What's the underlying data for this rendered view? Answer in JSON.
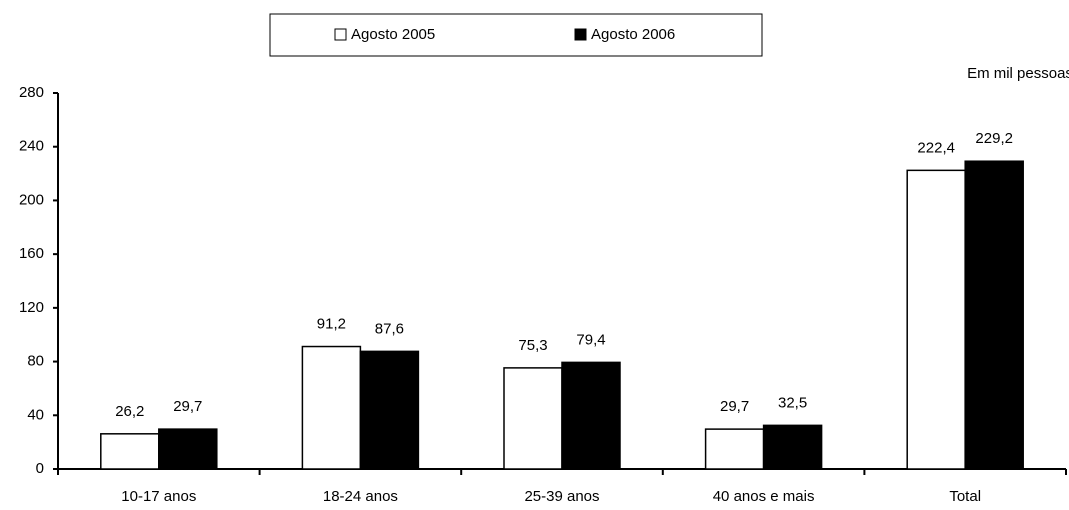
{
  "chart_data": {
    "type": "bar",
    "annotation": "Em mil pessoas",
    "categories": [
      "10-17 anos",
      "18-24 anos",
      "25-39 anos",
      "40 anos e mais",
      "Total"
    ],
    "series": [
      {
        "name": "Agosto 2005",
        "color": "#ffffff",
        "values": [
          26.2,
          91.2,
          75.3,
          29.7,
          222.4
        ],
        "value_labels": [
          "26,2",
          "91,2",
          "75,3",
          "29,7",
          "222,4"
        ]
      },
      {
        "name": "Agosto 2006",
        "color": "#000000",
        "values": [
          29.7,
          87.6,
          79.4,
          32.5,
          229.2
        ],
        "value_labels": [
          "29,7",
          "87,6",
          "79,4",
          "32,5",
          "229,2"
        ]
      }
    ],
    "ylim": [
      0,
      280
    ],
    "yticks": [
      0,
      40,
      80,
      120,
      160,
      200,
      240,
      280
    ],
    "legend": "top"
  }
}
